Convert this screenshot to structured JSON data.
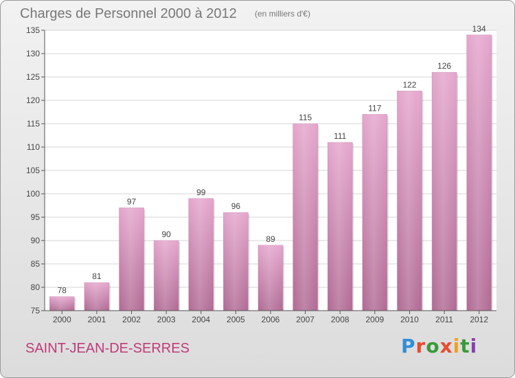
{
  "header": {
    "title": "Charges de Personnel 2000 à 2012",
    "subtitle": "(en milliers d'€)"
  },
  "footer": {
    "place": "SAINT-JEAN-DE-SERRES",
    "logo_text": "Proxiti"
  },
  "colors": {
    "bar_top": "#e4a5cc",
    "bar_bottom": "#b06a93",
    "place_text": "#c03a78"
  },
  "chart_data": {
    "type": "bar",
    "title": "Charges de Personnel 2000 à 2012",
    "subtitle": "(en milliers d'€)",
    "xlabel": "",
    "ylabel": "",
    "categories": [
      "2000",
      "2001",
      "2002",
      "2003",
      "2004",
      "2005",
      "2006",
      "2007",
      "2008",
      "2009",
      "2010",
      "2011",
      "2012"
    ],
    "values": [
      78,
      81,
      97,
      90,
      99,
      96,
      89,
      115,
      111,
      117,
      122,
      126,
      134
    ],
    "data_labels": [
      "78",
      "81",
      "97",
      "90",
      "99",
      "96",
      "89",
      "115",
      "111",
      "117",
      "122",
      "126",
      "134"
    ],
    "ylim": [
      75,
      135
    ],
    "yticks": [
      75,
      80,
      85,
      90,
      95,
      100,
      105,
      110,
      115,
      120,
      125,
      130,
      135
    ],
    "ytick_labels": [
      "75",
      "80",
      "85",
      "90",
      "95",
      "100",
      "105",
      "110",
      "115",
      "120",
      "125",
      "130",
      "135"
    ],
    "grid": true,
    "legend": "none"
  }
}
